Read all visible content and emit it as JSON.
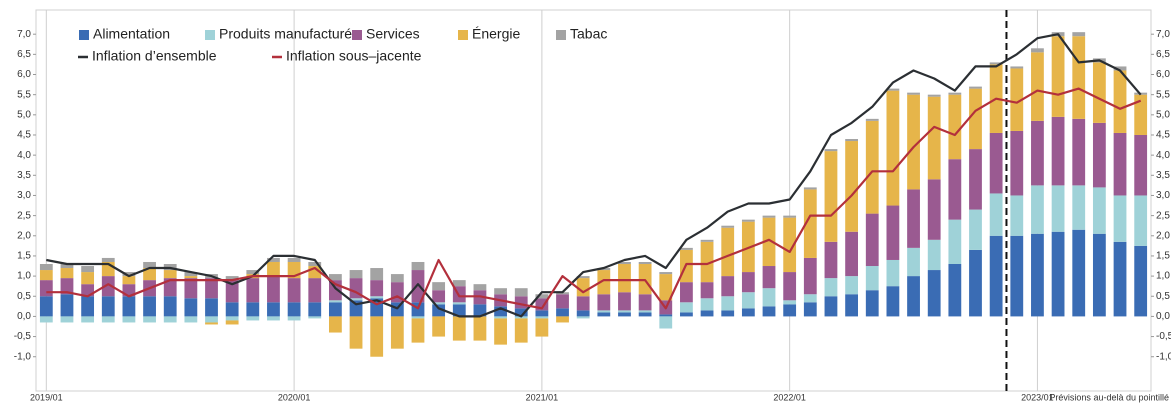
{
  "chart_data": {
    "type": "bar",
    "stacked": true,
    "categories": [
      "2019/01",
      null,
      null,
      null,
      null,
      null,
      null,
      null,
      null,
      null,
      null,
      null,
      "2020/01",
      null,
      null,
      null,
      null,
      null,
      null,
      null,
      null,
      null,
      null,
      null,
      "2021/01",
      null,
      null,
      null,
      null,
      null,
      null,
      null,
      null,
      null,
      null,
      null,
      "2022/01",
      null,
      null,
      null,
      null,
      null,
      null,
      null,
      null,
      null,
      null,
      null,
      "2023/01",
      null,
      null,
      null,
      null,
      null
    ],
    "series": [
      {
        "name": "Alimentation",
        "color": "#3a6cb4",
        "values": [
          0.5,
          0.55,
          0.5,
          0.5,
          0.5,
          0.5,
          0.5,
          0.45,
          0.45,
          0.35,
          0.35,
          0.35,
          0.35,
          0.35,
          0.35,
          0.4,
          0.45,
          0.35,
          0.35,
          0.3,
          0.3,
          0.3,
          0.25,
          0.2,
          0.15,
          0.2,
          0.15,
          0.1,
          0.1,
          0.1,
          0.05,
          0.1,
          0.15,
          0.15,
          0.2,
          0.25,
          0.3,
          0.35,
          0.5,
          0.55,
          0.65,
          0.75,
          1.0,
          1.15,
          1.3,
          1.65,
          2.0,
          2.0,
          2.05,
          2.1,
          2.15,
          2.05,
          1.85,
          1.75
        ]
      },
      {
        "name": "Produits manufacturés",
        "color": "#9fd2d8",
        "values": [
          -0.15,
          -0.15,
          -0.15,
          -0.15,
          -0.15,
          -0.15,
          -0.15,
          -0.15,
          -0.15,
          -0.1,
          -0.1,
          -0.1,
          -0.1,
          -0.05,
          0.05,
          0.05,
          0.05,
          0.0,
          -0.05,
          0.05,
          0.05,
          0.0,
          -0.05,
          -0.05,
          -0.05,
          0.0,
          -0.05,
          0.05,
          0.05,
          0.05,
          -0.3,
          0.25,
          0.3,
          0.35,
          0.4,
          0.45,
          0.1,
          0.2,
          0.45,
          0.45,
          0.6,
          0.65,
          0.7,
          0.75,
          1.1,
          1.0,
          1.05,
          1.0,
          1.2,
          1.15,
          1.1,
          1.15,
          1.15,
          1.25
        ]
      },
      {
        "name": "Services",
        "color": "#9a5a91",
        "values": [
          0.4,
          0.4,
          0.3,
          0.5,
          0.3,
          0.4,
          0.45,
          0.5,
          0.5,
          0.55,
          0.6,
          0.65,
          0.6,
          0.6,
          0.5,
          0.5,
          0.4,
          0.5,
          0.8,
          0.3,
          0.4,
          0.35,
          0.3,
          0.3,
          0.3,
          0.35,
          0.35,
          0.4,
          0.45,
          0.4,
          0.35,
          0.5,
          0.4,
          0.5,
          0.5,
          0.55,
          0.7,
          0.9,
          0.9,
          1.1,
          1.3,
          1.35,
          1.45,
          1.5,
          1.5,
          1.5,
          1.5,
          1.6,
          1.6,
          1.7,
          1.65,
          1.6,
          1.55,
          1.5
        ]
      },
      {
        "name": "Énergie",
        "color": "#e6b54a",
        "values": [
          0.25,
          0.25,
          0.3,
          0.35,
          0.2,
          0.3,
          0.2,
          0.05,
          -0.05,
          -0.1,
          0.1,
          0.35,
          0.4,
          0.3,
          -0.4,
          -0.8,
          -1.0,
          -0.8,
          -0.6,
          -0.5,
          -0.6,
          -0.6,
          -0.65,
          -0.6,
          -0.45,
          -0.15,
          0.45,
          0.6,
          0.7,
          0.75,
          0.65,
          0.8,
          1.0,
          1.2,
          1.25,
          1.2,
          1.35,
          1.7,
          2.25,
          2.25,
          2.3,
          2.85,
          2.35,
          2.05,
          1.6,
          1.5,
          1.7,
          1.55,
          1.7,
          2.0,
          2.05,
          1.5,
          1.55,
          1.0
        ]
      },
      {
        "name": "Tabac",
        "color": "#a3a3a3",
        "values": [
          0.15,
          0.1,
          0.15,
          0.1,
          0.1,
          0.15,
          0.15,
          0.1,
          0.1,
          0.1,
          0.1,
          0.1,
          0.1,
          0.1,
          0.15,
          0.2,
          0.3,
          0.2,
          0.2,
          0.2,
          0.15,
          0.15,
          0.15,
          0.2,
          0.1,
          0.05,
          0.05,
          0.05,
          0.05,
          0.05,
          0.05,
          0.05,
          0.05,
          0.05,
          0.05,
          0.05,
          0.05,
          0.05,
          0.05,
          0.05,
          0.05,
          0.05,
          0.05,
          0.05,
          0.05,
          0.05,
          0.05,
          0.05,
          0.1,
          0.1,
          0.1,
          0.1,
          0.1,
          0.05
        ]
      },
      {
        "name": "Inflation d’ensemble",
        "type": "line",
        "color": "#2b2f33",
        "values": [
          1.4,
          1.3,
          1.3,
          1.3,
          1.0,
          1.2,
          1.2,
          1.1,
          1.0,
          0.8,
          1.0,
          1.5,
          1.5,
          1.4,
          0.7,
          0.3,
          0.4,
          0.2,
          0.8,
          0.2,
          0.0,
          0.0,
          0.2,
          0.0,
          0.6,
          0.6,
          1.1,
          1.2,
          1.4,
          1.5,
          1.2,
          1.9,
          2.2,
          2.6,
          2.8,
          2.8,
          2.9,
          3.6,
          4.5,
          4.8,
          5.2,
          5.8,
          6.1,
          5.9,
          5.6,
          6.2,
          6.2,
          6.5,
          6.9,
          7.0,
          6.3,
          6.35,
          6.1,
          5.5
        ]
      },
      {
        "name": "Inflation sous–jacente",
        "type": "line",
        "color": "#b3303c",
        "values": [
          0.6,
          0.6,
          0.5,
          0.8,
          0.5,
          0.7,
          0.9,
          0.9,
          0.9,
          0.9,
          1.0,
          1.0,
          1.0,
          1.2,
          0.8,
          0.6,
          0.3,
          0.5,
          0.2,
          1.4,
          0.5,
          0.5,
          0.4,
          0.3,
          0.2,
          1.0,
          0.6,
          0.9,
          0.9,
          0.9,
          0.2,
          1.3,
          1.3,
          1.5,
          1.7,
          1.9,
          1.6,
          2.5,
          2.5,
          3.0,
          3.6,
          3.6,
          4.2,
          4.7,
          4.5,
          5.1,
          5.4,
          5.3,
          5.6,
          5.5,
          5.65,
          5.4,
          5.15,
          5.35
        ]
      }
    ],
    "ylim": [
      -1.85,
      7.6
    ],
    "yticks": [
      {
        "value": -1,
        "label": "-1,0"
      },
      {
        "value": -0.5,
        "label": "-0,5"
      },
      {
        "value": 0,
        "label": "0,0"
      },
      {
        "value": 0.5,
        "label": "0,5"
      },
      {
        "value": 1,
        "label": "1,0"
      },
      {
        "value": 1.5,
        "label": "1,5"
      },
      {
        "value": 2,
        "label": "2,0"
      },
      {
        "value": 2.5,
        "label": "2,5"
      },
      {
        "value": 3,
        "label": "3,0"
      },
      {
        "value": 3.5,
        "label": "3,5"
      },
      {
        "value": 4,
        "label": "4,0"
      },
      {
        "value": 4.5,
        "label": "4,5"
      },
      {
        "value": 5,
        "label": "5,0"
      },
      {
        "value": 5.5,
        "label": "5,5"
      },
      {
        "value": 6,
        "label": "6,0"
      },
      {
        "value": 6.5,
        "label": "6,5"
      },
      {
        "value": 7,
        "label": "7,0"
      }
    ],
    "annotation": "Prévisions au-delà du pointillé",
    "legend": "top-left"
  }
}
